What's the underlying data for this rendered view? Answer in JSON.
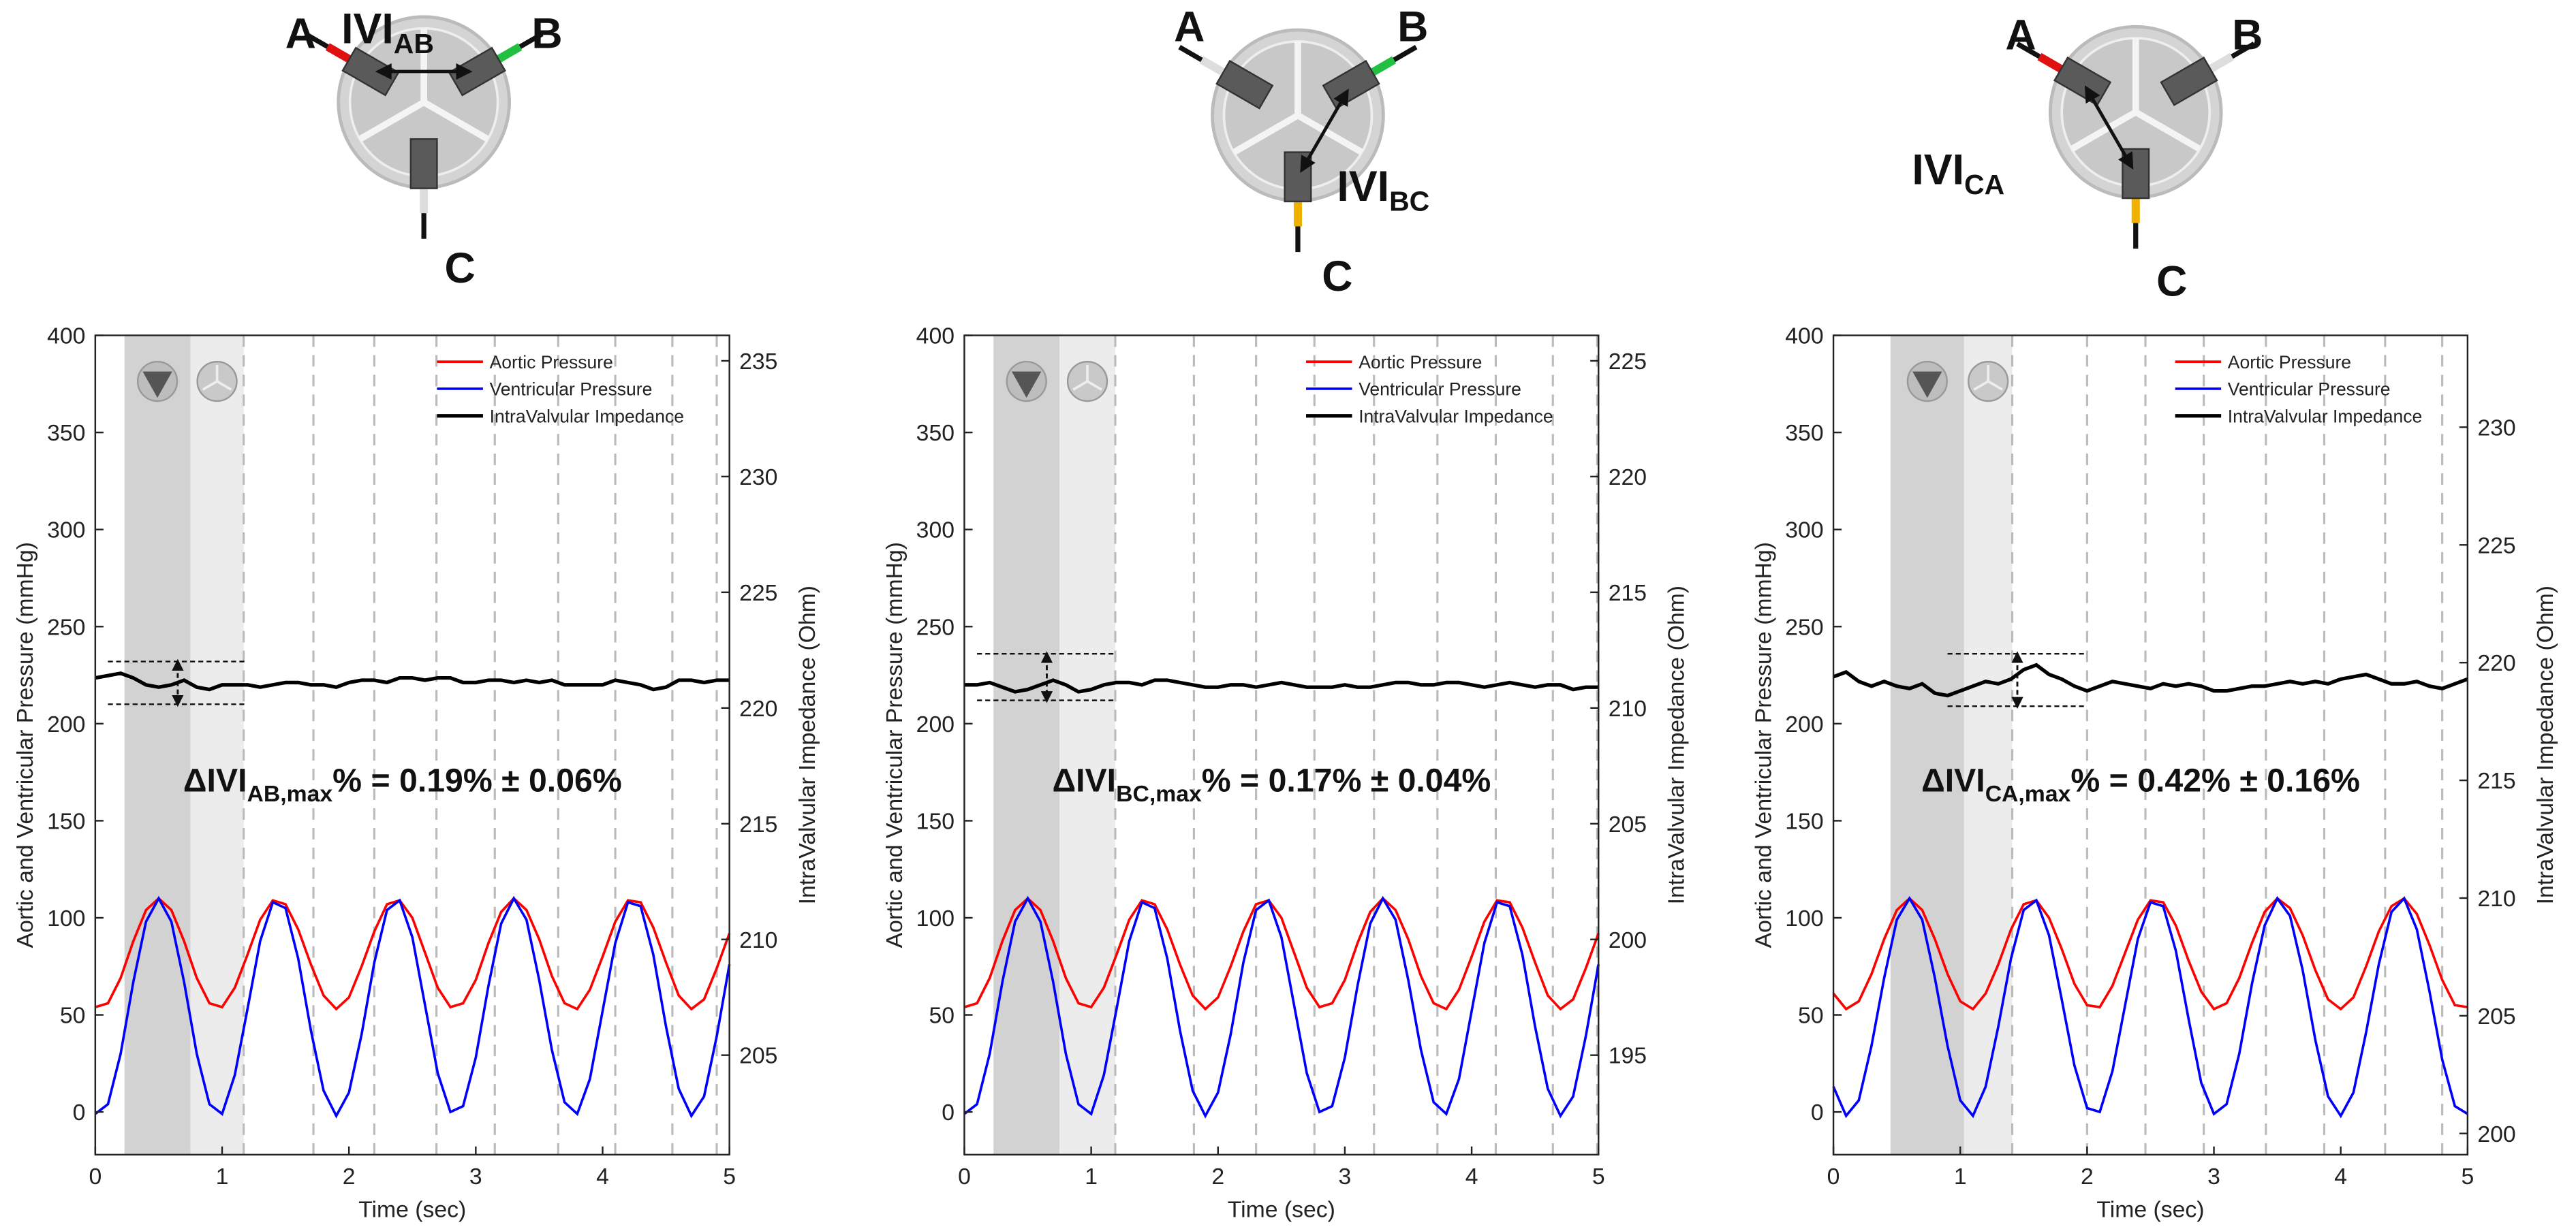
{
  "chart_data": [
    {
      "type": "line",
      "diagram": {
        "labels": [
          "A",
          "B",
          "C"
        ],
        "ivi": "IVI",
        "ivi_sub": "AB"
      },
      "annotation": {
        "prefix": "ΔIVI",
        "sub": "AB,max",
        "suffix": "% = 0.19% ± 0.06%"
      },
      "xlabel": "Time (sec)",
      "ylabel": "Aortic and Ventricular Pressure (mmHg)",
      "y2label": "IntraValvular Impedance (Ohm)",
      "legend": "upper right",
      "xlim": [
        0,
        5
      ],
      "xticks": [
        0,
        1,
        2,
        3,
        4,
        5
      ],
      "ylim": [
        -22,
        400
      ],
      "yticks": [
        0,
        50,
        100,
        150,
        200,
        250,
        300,
        350,
        400
      ],
      "y2lim": [
        200.7,
        236.1
      ],
      "y2ticks": [
        205,
        210,
        215,
        220,
        225,
        230,
        235
      ],
      "shaded": [
        [
          0.23,
          0.75
        ],
        [
          0.75,
          1.17
        ]
      ],
      "phase_lines": [
        1.17,
        1.72,
        2.2,
        2.69,
        3.15,
        3.65,
        4.1,
        4.55,
        4.9
      ],
      "delta_band": {
        "x": [
          0.1,
          1.2
        ],
        "y": [
          232,
          210
        ]
      },
      "x": [
        0,
        0.1,
        0.2,
        0.3,
        0.4,
        0.5,
        0.6,
        0.7,
        0.8,
        0.9,
        1,
        1.1,
        1.2,
        1.3,
        1.4,
        1.5,
        1.6,
        1.7,
        1.8,
        1.9,
        2,
        2.1,
        2.2,
        2.3,
        2.4,
        2.5,
        2.6,
        2.7,
        2.8,
        2.9,
        3,
        3.1,
        3.2,
        3.3,
        3.4,
        3.5,
        3.6,
        3.7,
        3.8,
        3.9,
        4,
        4.1,
        4.2,
        4.3,
        4.4,
        4.5,
        4.6,
        4.7,
        4.8,
        4.9,
        5
      ],
      "series": [
        {
          "name": "Aortic Pressure",
          "color": "#ff0000",
          "values": [
            54,
            56,
            69,
            88,
            104,
            110,
            104,
            88,
            69,
            56,
            54,
            64,
            81,
            99,
            109,
            107,
            94,
            76,
            60,
            53,
            59,
            75,
            93,
            107,
            109,
            100,
            82,
            64,
            54,
            56,
            68,
            87,
            103,
            110,
            104,
            89,
            70,
            56,
            53,
            63,
            80,
            98,
            109,
            108,
            95,
            77,
            60,
            53,
            58,
            74,
            92
          ]
        },
        {
          "name": "Ventricular Pressure",
          "color": "#0000ff",
          "values": [
            -1,
            4,
            30,
            67,
            98,
            110,
            98,
            67,
            30,
            4,
            -1,
            19,
            53,
            88,
            108,
            105,
            79,
            42,
            11,
            -2,
            10,
            40,
            77,
            104,
            109,
            90,
            55,
            20,
            0,
            3,
            28,
            65,
            97,
            110,
            99,
            68,
            32,
            5,
            -1,
            17,
            52,
            87,
            108,
            106,
            81,
            44,
            12,
            -2,
            8,
            39,
            76
          ]
        },
        {
          "name": "IntraValvular Impedance",
          "color": "#000000",
          "axis": "y2",
          "values": [
            221.3,
            221.4,
            221.5,
            221.3,
            221.0,
            220.9,
            221.0,
            221.2,
            220.9,
            220.8,
            221.0,
            221.0,
            221.0,
            220.9,
            221.0,
            221.1,
            221.1,
            221.0,
            221.0,
            220.9,
            221.1,
            221.2,
            221.2,
            221.1,
            221.3,
            221.3,
            221.2,
            221.3,
            221.3,
            221.1,
            221.1,
            221.2,
            221.2,
            221.1,
            221.2,
            221.1,
            221.2,
            221.0,
            221.0,
            221.0,
            221.0,
            221.2,
            221.1,
            221.0,
            220.8,
            220.9,
            221.2,
            221.2,
            221.1,
            221.2,
            221.2
          ]
        }
      ]
    },
    {
      "type": "line",
      "diagram": {
        "labels": [
          "A",
          "B",
          "C"
        ],
        "ivi": "IVI",
        "ivi_sub": "BC"
      },
      "annotation": {
        "prefix": "ΔIVI",
        "sub": "BC,max",
        "suffix": "% = 0.17% ± 0.04%"
      },
      "xlabel": "Time (sec)",
      "ylabel": "Aortic and Ventricular Pressure (mmHg)",
      "y2label": "IntraValvular Impedance (Ohm)",
      "legend": "upper right",
      "xlim": [
        0,
        5
      ],
      "xticks": [
        0,
        1,
        2,
        3,
        4,
        5
      ],
      "ylim": [
        -22,
        400
      ],
      "yticks": [
        0,
        50,
        100,
        150,
        200,
        250,
        300,
        350,
        400
      ],
      "y2lim": [
        190.7,
        226.1
      ],
      "y2ticks": [
        195,
        200,
        205,
        210,
        215,
        220,
        225
      ],
      "shaded": [
        [
          0.23,
          0.75
        ],
        [
          0.75,
          1.19
        ]
      ],
      "phase_lines": [
        1.19,
        1.81,
        2.3,
        2.76,
        3.23,
        3.73,
        4.19,
        4.64,
        4.99
      ],
      "delta_band": {
        "x": [
          0.1,
          1.2
        ],
        "y": [
          236,
          212
        ]
      },
      "x": [
        0,
        0.1,
        0.2,
        0.3,
        0.4,
        0.5,
        0.6,
        0.7,
        0.8,
        0.9,
        1,
        1.1,
        1.2,
        1.3,
        1.4,
        1.5,
        1.6,
        1.7,
        1.8,
        1.9,
        2,
        2.1,
        2.2,
        2.3,
        2.4,
        2.5,
        2.6,
        2.7,
        2.8,
        2.9,
        3,
        3.1,
        3.2,
        3.3,
        3.4,
        3.5,
        3.6,
        3.7,
        3.8,
        3.9,
        4,
        4.1,
        4.2,
        4.3,
        4.4,
        4.5,
        4.6,
        4.7,
        4.8,
        4.9,
        5
      ],
      "series": [
        {
          "name": "Aortic Pressure",
          "color": "#ff0000",
          "values": [
            54,
            56,
            69,
            88,
            104,
            110,
            104,
            88,
            69,
            56,
            54,
            64,
            81,
            99,
            109,
            107,
            94,
            76,
            60,
            53,
            59,
            75,
            93,
            107,
            109,
            100,
            82,
            64,
            54,
            56,
            68,
            87,
            103,
            110,
            104,
            89,
            70,
            56,
            53,
            63,
            80,
            98,
            109,
            108,
            95,
            77,
            60,
            53,
            58,
            74,
            92
          ]
        },
        {
          "name": "Ventricular Pressure",
          "color": "#0000ff",
          "values": [
            -1,
            4,
            30,
            67,
            98,
            110,
            98,
            67,
            30,
            4,
            -1,
            19,
            53,
            88,
            108,
            105,
            79,
            42,
            11,
            -2,
            10,
            40,
            77,
            104,
            109,
            90,
            55,
            20,
            0,
            3,
            28,
            65,
            97,
            110,
            99,
            68,
            32,
            5,
            -1,
            17,
            52,
            87,
            108,
            106,
            81,
            44,
            12,
            -2,
            8,
            39,
            76
          ]
        },
        {
          "name": "IntraValvular Impedance",
          "color": "#000000",
          "axis": "y2",
          "values": [
            211.0,
            211.0,
            211.1,
            210.9,
            210.7,
            210.8,
            211.0,
            211.2,
            211.0,
            210.7,
            210.8,
            211.0,
            211.1,
            211.1,
            211.0,
            211.2,
            211.2,
            211.1,
            211.0,
            210.9,
            210.9,
            211.0,
            211.0,
            210.9,
            211.0,
            211.1,
            211.0,
            210.9,
            210.9,
            210.9,
            211.0,
            210.9,
            210.9,
            211.0,
            211.1,
            211.1,
            211.0,
            211.0,
            211.1,
            211.1,
            211.0,
            210.9,
            211.0,
            211.1,
            211.0,
            210.9,
            211.0,
            211.0,
            210.8,
            210.9,
            210.9
          ]
        }
      ]
    },
    {
      "type": "line",
      "diagram": {
        "labels": [
          "A",
          "B",
          "C"
        ],
        "ivi": "IVI",
        "ivi_sub": "CA"
      },
      "annotation": {
        "prefix": "ΔIVI",
        "sub": "CA,max",
        "suffix": "% = 0.42% ± 0.16%"
      },
      "xlabel": "Time (sec)",
      "ylabel": "Aortic and Ventricular Pressure (mmHg)",
      "y2label": "IntraValvular Impedance (Ohm)",
      "legend": "upper right",
      "xlim": [
        0,
        5
      ],
      "xticks": [
        0,
        1,
        2,
        3,
        4,
        5
      ],
      "ylim": [
        -22,
        400
      ],
      "yticks": [
        0,
        50,
        100,
        150,
        200,
        250,
        300,
        350,
        400
      ],
      "y2lim": [
        199.1,
        233.9
      ],
      "y2ticks": [
        200,
        205,
        210,
        215,
        220,
        225,
        230
      ],
      "shaded": [
        [
          0.45,
          1.03
        ],
        [
          1.03,
          1.41
        ]
      ],
      "phase_lines": [
        1.41,
        2.0,
        2.46,
        2.92,
        3.41,
        3.87,
        4.35,
        4.8
      ],
      "delta_band": {
        "x": [
          0.9,
          2.0
        ],
        "y": [
          236,
          209
        ]
      },
      "x": [
        0,
        0.1,
        0.2,
        0.3,
        0.4,
        0.5,
        0.6,
        0.7,
        0.8,
        0.9,
        1,
        1.1,
        1.2,
        1.3,
        1.4,
        1.5,
        1.6,
        1.7,
        1.8,
        1.9,
        2,
        2.1,
        2.2,
        2.3,
        2.4,
        2.5,
        2.6,
        2.7,
        2.8,
        2.9,
        3,
        3.1,
        3.2,
        3.3,
        3.4,
        3.5,
        3.6,
        3.7,
        3.8,
        3.9,
        4,
        4.1,
        4.2,
        4.3,
        4.4,
        4.5,
        4.6,
        4.7,
        4.8,
        4.9,
        5
      ],
      "series": [
        {
          "name": "Aortic Pressure",
          "color": "#ff0000",
          "values": [
            61,
            53,
            57,
            71,
            89,
            104,
            110,
            104,
            89,
            71,
            57,
            53,
            61,
            76,
            94,
            107,
            109,
            100,
            84,
            66,
            55,
            54,
            65,
            82,
            99,
            109,
            108,
            96,
            78,
            62,
            53,
            56,
            69,
            87,
            103,
            110,
            105,
            91,
            73,
            58,
            53,
            59,
            75,
            93,
            106,
            110,
            102,
            86,
            68,
            55,
            54
          ]
        },
        {
          "name": "Ventricular Pressure",
          "color": "#0000ff",
          "values": [
            13,
            -2,
            6,
            34,
            69,
            99,
            110,
            99,
            69,
            34,
            6,
            -2,
            13,
            44,
            79,
            104,
            109,
            91,
            58,
            24,
            2,
            0,
            21,
            55,
            89,
            108,
            106,
            83,
            48,
            15,
            -1,
            4,
            30,
            66,
            96,
            110,
            101,
            73,
            37,
            8,
            -2,
            10,
            41,
            76,
            103,
            110,
            94,
            62,
            27,
            3,
            -1
          ]
        },
        {
          "name": "IntraValvular Impedance",
          "color": "#000000",
          "axis": "y2",
          "values": [
            219.4,
            219.6,
            219.2,
            219.0,
            219.2,
            219.0,
            218.9,
            219.1,
            218.7,
            218.6,
            218.8,
            219.0,
            219.2,
            219.1,
            219.3,
            219.7,
            219.9,
            219.5,
            219.3,
            219.0,
            218.8,
            219.0,
            219.2,
            219.1,
            219.0,
            218.9,
            219.1,
            219.0,
            219.1,
            219.0,
            218.8,
            218.8,
            218.9,
            219.0,
            219.0,
            219.1,
            219.2,
            219.1,
            219.2,
            219.1,
            219.3,
            219.4,
            219.5,
            219.3,
            219.1,
            219.1,
            219.2,
            219.0,
            218.9,
            219.1,
            219.3
          ]
        }
      ]
    }
  ]
}
